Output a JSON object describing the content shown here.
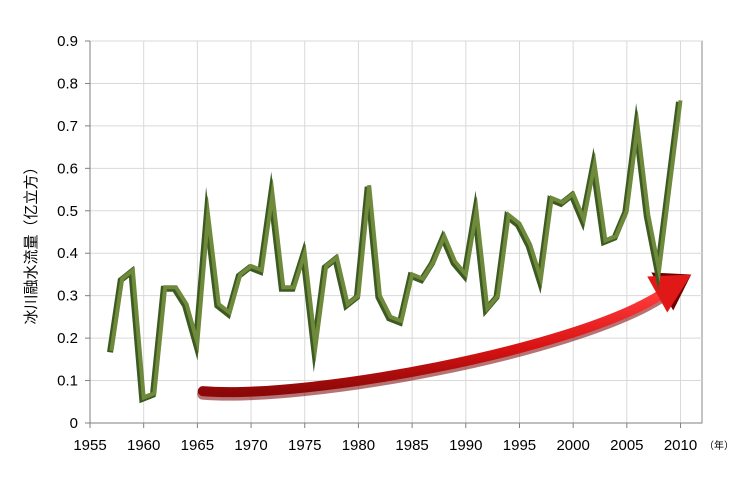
{
  "chart_data": {
    "type": "line",
    "title": "",
    "ylabel": "冰川融水流量（亿立方）",
    "xlabel_unit": "（年）",
    "xlim": [
      1955,
      2012
    ],
    "ylim": [
      0,
      0.9
    ],
    "x_ticks": [
      "1955",
      "1960",
      "1965",
      "1970",
      "1975",
      "1980",
      "1985",
      "1990",
      "1995",
      "2000",
      "2005",
      "2010"
    ],
    "y_ticks": [
      "0",
      "0.1",
      "0.2",
      "0.3",
      "0.4",
      "0.5",
      "0.6",
      "0.7",
      "0.8",
      "0.9"
    ],
    "grid": true,
    "legend": "none",
    "series": [
      {
        "color": "#6e8a3a",
        "x": [
          1957,
          1958,
          1959,
          1960,
          1961,
          1962,
          1963,
          1964,
          1965,
          1966,
          1967,
          1968,
          1969,
          1970,
          1971,
          1972,
          1973,
          1974,
          1975,
          1976,
          1977,
          1978,
          1979,
          1980,
          1981,
          1982,
          1983,
          1984,
          1985,
          1986,
          1987,
          1988,
          1989,
          1990,
          1991,
          1992,
          1993,
          1994,
          1995,
          1996,
          1997,
          1998,
          1999,
          2000,
          2001,
          2002,
          2003,
          2004,
          2005,
          2006,
          2007,
          2008,
          2009,
          2010
        ],
        "values": [
          0.17,
          0.34,
          0.36,
          0.06,
          0.07,
          0.32,
          0.32,
          0.28,
          0.19,
          0.49,
          0.28,
          0.26,
          0.35,
          0.37,
          0.36,
          0.54,
          0.32,
          0.32,
          0.4,
          0.18,
          0.37,
          0.39,
          0.28,
          0.3,
          0.56,
          0.3,
          0.25,
          0.24,
          0.35,
          0.34,
          0.38,
          0.44,
          0.38,
          0.35,
          0.5,
          0.27,
          0.3,
          0.49,
          0.47,
          0.42,
          0.34,
          0.53,
          0.52,
          0.54,
          0.48,
          0.61,
          0.43,
          0.44,
          0.5,
          0.7,
          0.49,
          0.36,
          0.56,
          0.76
        ]
      }
    ],
    "trend_arrow": {
      "color": "#e01818",
      "x": [
        1965.5,
        2011
      ],
      "y_start": 0.075,
      "y_end": 0.35
    }
  }
}
